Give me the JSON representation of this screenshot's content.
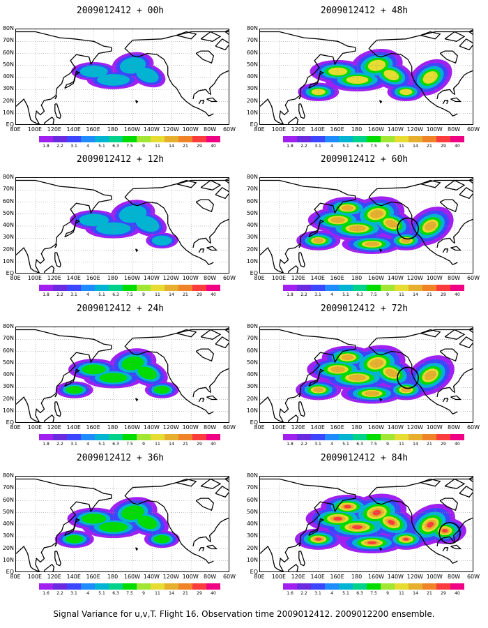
{
  "panels": [
    {
      "title": "2009012412 + 00h",
      "intensity": 0.35,
      "circle": null
    },
    {
      "title": "2009012412 + 48h",
      "intensity": 0.72,
      "circle": null
    },
    {
      "title": "2009012412 + 12h",
      "intensity": 0.45,
      "circle": null
    },
    {
      "title": "2009012412 + 60h",
      "intensity": 0.85,
      "circle": "west-coast"
    },
    {
      "title": "2009012412 + 24h",
      "intensity": 0.55,
      "circle": null
    },
    {
      "title": "2009012412 + 72h",
      "intensity": 0.92,
      "circle": "west-coast"
    },
    {
      "title": "2009012412 + 36h",
      "intensity": 0.62,
      "circle": null
    },
    {
      "title": "2009012412 + 84h",
      "intensity": 1.0,
      "circle": "southeast"
    }
  ],
  "lat_labels": [
    "80N",
    "70N",
    "60N",
    "50N",
    "40N",
    "30N",
    "20N",
    "10N",
    "EQ"
  ],
  "lon_labels": [
    "80E",
    "100E",
    "120E",
    "140E",
    "160E",
    "180",
    "160W",
    "140W",
    "120W",
    "100W",
    "80W",
    "60W"
  ],
  "colorbar_labels": [
    "1.8",
    "2.2",
    "3.1",
    "4",
    "5.1",
    "6.3",
    "7.5",
    "9",
    "11",
    "14",
    "21",
    "29",
    "40"
  ],
  "colorbar_labels_alt": [
    "1.6",
    "2.2",
    "3.1",
    "4",
    "5.1",
    "6.3",
    "7.5",
    "9",
    "11",
    "14",
    "21",
    "29",
    "40"
  ],
  "colorbar_colors": [
    "#a020f0",
    "#6a2ae0",
    "#3c46ff",
    "#1e8cff",
    "#00b4d2",
    "#00d28c",
    "#00dc00",
    "#a0e632",
    "#e6dc32",
    "#e6af2d",
    "#f08228",
    "#fa3c3c",
    "#f00082"
  ],
  "footer": "Signal Variance for u,v,T. Flight 16. Observation time 2009012412. 2009012200 ensemble."
}
